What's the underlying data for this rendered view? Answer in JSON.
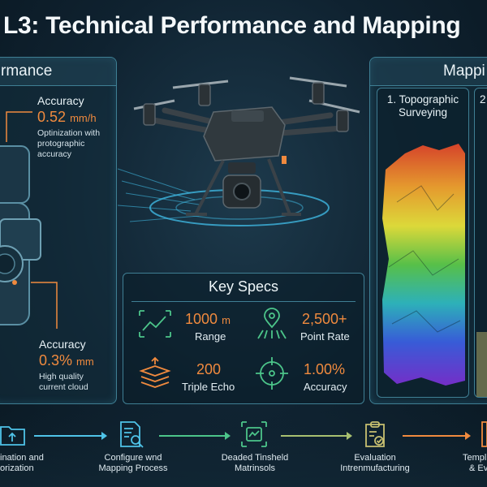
{
  "title": "L3: Technical Performance and Mapping",
  "performance_panel": {
    "header": "rmance",
    "top": {
      "label": "Accuracy",
      "value": "0.52",
      "unit": "mm/h",
      "desc_lines": [
        "Optinization with",
        "protographic",
        "accuracy"
      ]
    },
    "bottom": {
      "label": "Accuracy",
      "value": "0.3%",
      "unit": "mm",
      "desc_lines": [
        "High quality",
        "current cloud"
      ]
    }
  },
  "key_specs": {
    "title": "Key Specs",
    "items": [
      {
        "value": "1000",
        "unit": "m",
        "label": "Range",
        "icon": "line-chart-icon"
      },
      {
        "value": "2,500+",
        "unit": "",
        "label": "Point Rate",
        "icon": "location-pin-scan-icon"
      },
      {
        "value": "200",
        "unit": "",
        "label": "Triple Echo",
        "icon": "layers-icon"
      },
      {
        "value": "1.00%",
        "unit": "",
        "label": "Accuracy",
        "icon": "crosshair-icon"
      }
    ]
  },
  "mapping_panel": {
    "header": "Mappi",
    "cards": [
      {
        "title_lines": [
          "1. Topographic",
          "Surveying"
        ]
      },
      {
        "title_lines": [
          "2"
        ]
      }
    ]
  },
  "workflow": [
    {
      "lines": [
        "ination and",
        "orization"
      ],
      "icon": "folder-upload-icon",
      "color": "#4fc3e8"
    },
    {
      "lines": [
        "Configure wnd",
        "Mapping Process"
      ],
      "icon": "document-search-icon",
      "color": "#4fc3e8"
    },
    {
      "lines": [
        "Deaded Tinsheld",
        "Matrinsols"
      ],
      "icon": "scan-frame-icon",
      "color": "#4cc58a"
    },
    {
      "lines": [
        "Evaluation",
        "Intrenmufacturing"
      ],
      "icon": "clipboard-check-icon",
      "color": "#c8c070"
    },
    {
      "lines": [
        "Templ",
        "& Ev"
      ],
      "icon": "document-icon",
      "color": "#f08a3e"
    }
  ],
  "colors": {
    "accent": "#f08a3e",
    "panel_border": "#3f7f94",
    "background": "#0f2230"
  }
}
